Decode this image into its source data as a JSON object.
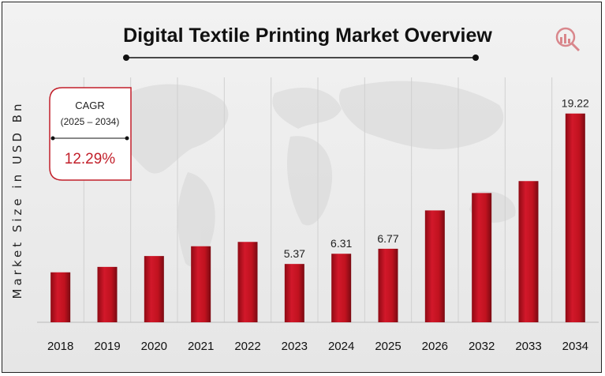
{
  "chart_data": {
    "type": "bar",
    "title": "Digital Textile Printing Market Overview",
    "ylabel": "Market Size in USD Bn",
    "xlabel": "",
    "categories": [
      "2018",
      "2019",
      "2020",
      "2021",
      "2022",
      "2023",
      "2024",
      "2025",
      "2026",
      "2032",
      "2033",
      "2034"
    ],
    "values": [
      4.6,
      5.1,
      6.1,
      7.0,
      7.4,
      5.37,
      6.31,
      6.77,
      10.3,
      11.9,
      13.0,
      19.22
    ],
    "data_labels": [
      "",
      "",
      "",
      "",
      "",
      "5.37",
      "6.31",
      "6.77",
      "",
      "",
      "",
      "19.22"
    ],
    "bar_color": "#c0121f",
    "grid": false,
    "legend": "none"
  },
  "cagr": {
    "title": "CAGR",
    "range": "(2025 – 2034)",
    "value": "12.29%"
  },
  "colors": {
    "accent": "#c21f2a",
    "bar": "#c0121f",
    "bar_dark": "#7a0a12"
  },
  "logo_icon": "chart-magnifier-logo-icon"
}
